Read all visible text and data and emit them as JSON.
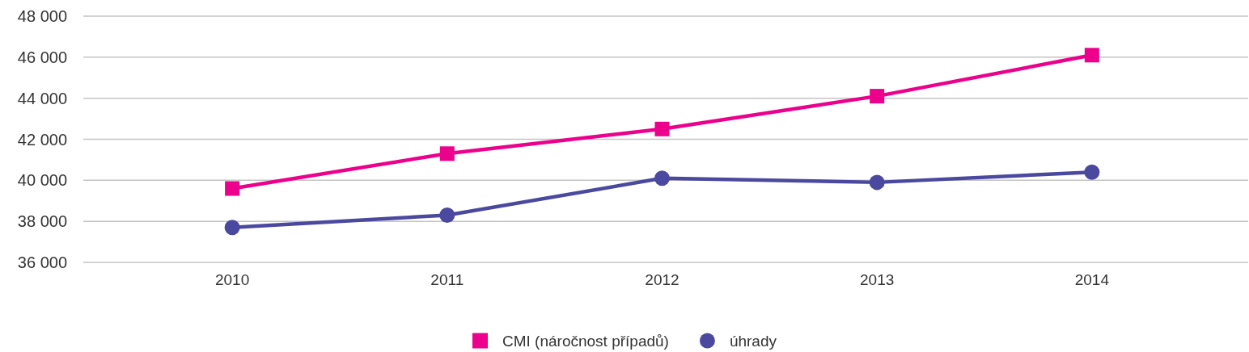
{
  "chart_data": {
    "type": "line",
    "categories": [
      "2010",
      "2011",
      "2012",
      "2013",
      "2014"
    ],
    "series": [
      {
        "name": "CMI (náročnost případů)",
        "color": "#ec008c",
        "marker": "square",
        "values": [
          39600,
          41300,
          42500,
          44100,
          46100
        ]
      },
      {
        "name": "úhrady",
        "color": "#4b48a0",
        "marker": "circle",
        "values": [
          37700,
          38300,
          40100,
          39900,
          40400
        ]
      }
    ],
    "ylim": [
      36000,
      48000
    ],
    "yticks": [
      {
        "value": 36000,
        "label": "36 000"
      },
      {
        "value": 38000,
        "label": "38 000"
      },
      {
        "value": 40000,
        "label": "40 000"
      },
      {
        "value": 42000,
        "label": "42 000"
      },
      {
        "value": 44000,
        "label": "44 000"
      },
      {
        "value": 46000,
        "label": "46 000"
      },
      {
        "value": 48000,
        "label": "48 000"
      }
    ],
    "grid": true,
    "legend": "bottom"
  }
}
